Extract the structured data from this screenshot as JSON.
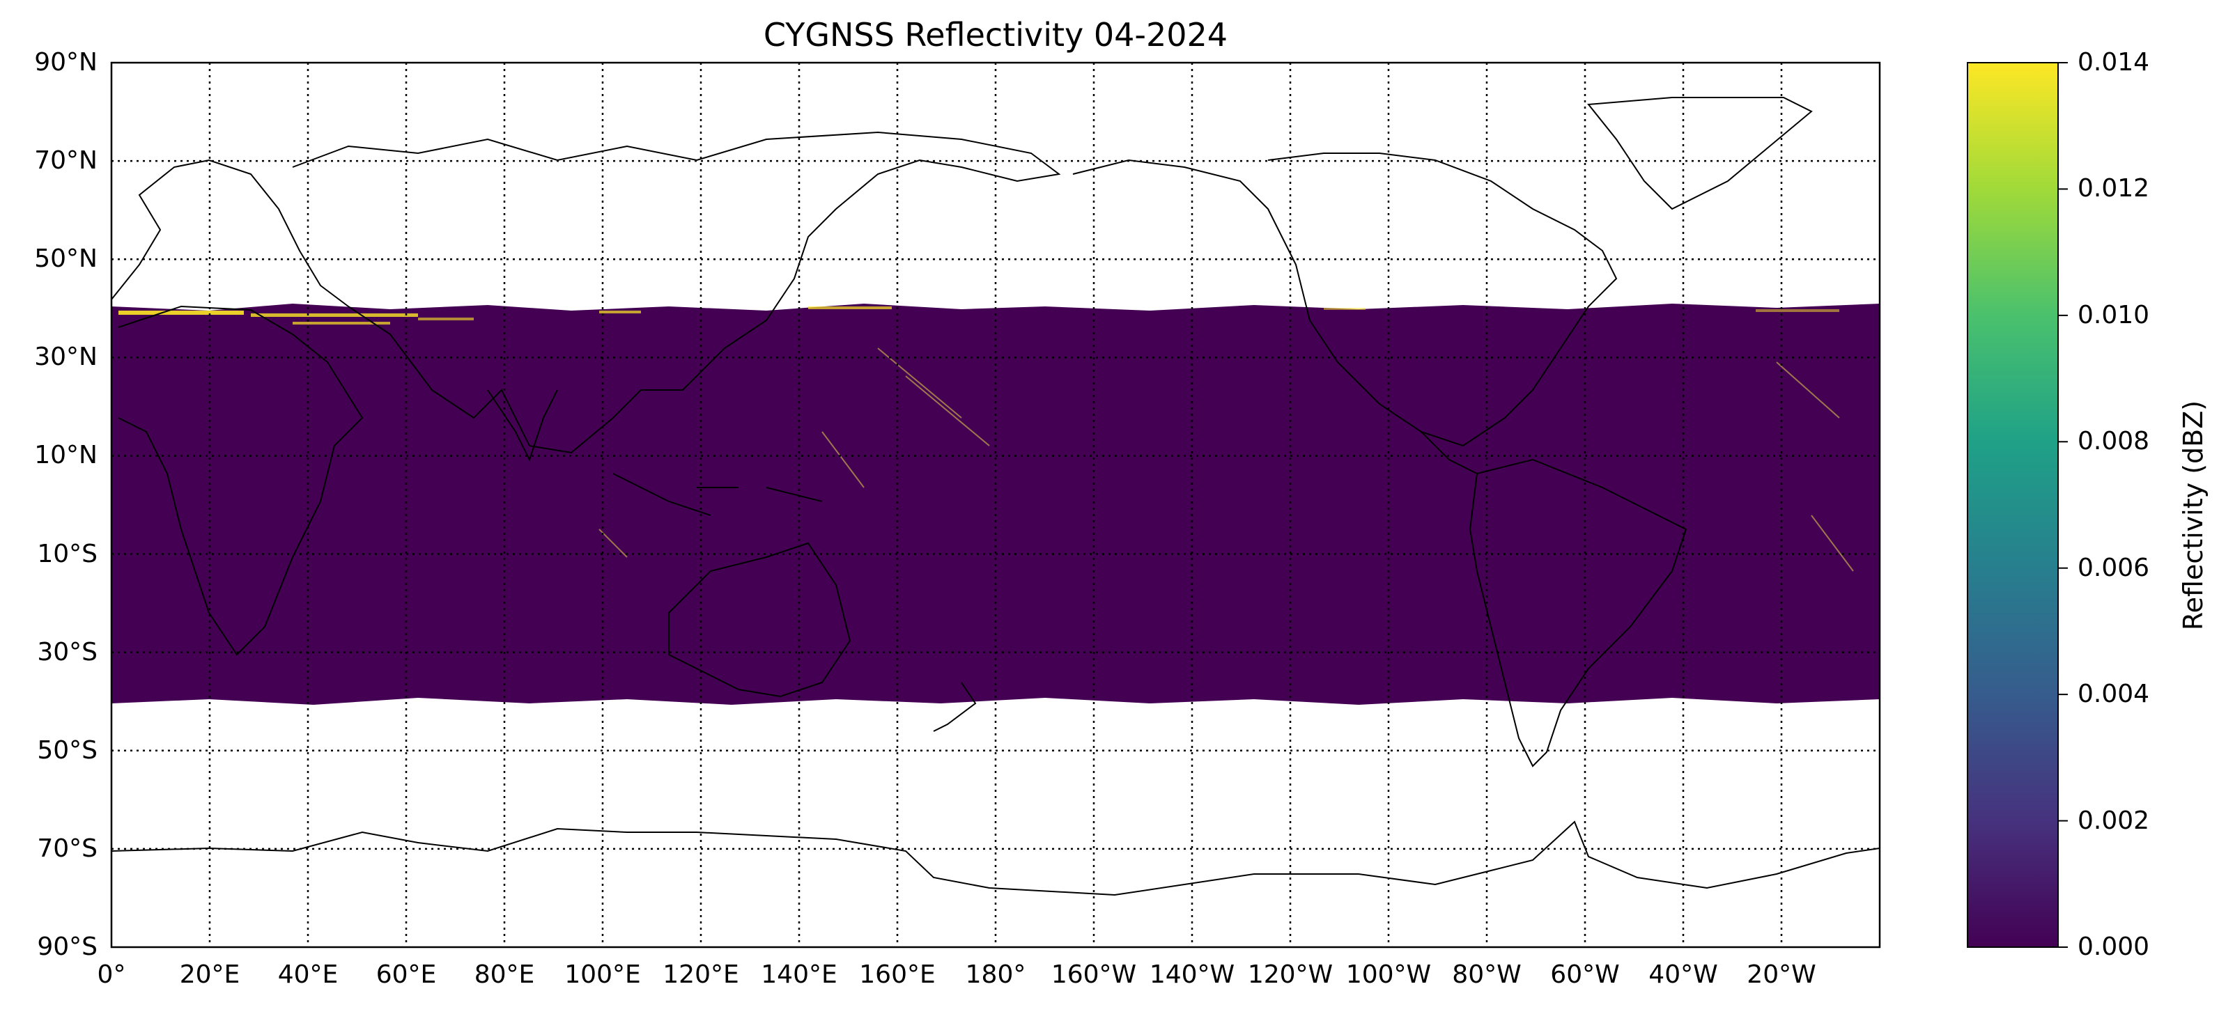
{
  "title": "CYGNSS Reflectivity 04-2024",
  "lat_labels": [
    "90°N",
    "70°N",
    "50°N",
    "30°N",
    "10°N",
    "10°S",
    "30°S",
    "50°S",
    "70°S",
    "90°S"
  ],
  "lon_labels": [
    "0°",
    "20°E",
    "40°E",
    "60°E",
    "80°E",
    "100°E",
    "120°E",
    "140°E",
    "160°E",
    "180°",
    "160°W",
    "140°W",
    "120°W",
    "100°W",
    "80°W",
    "60°W",
    "40°W",
    "20°W"
  ],
  "colorbar": {
    "label": "Reflectivity (dBZ)",
    "ticks": [
      "0.000",
      "0.002",
      "0.004",
      "0.006",
      "0.008",
      "0.010",
      "0.012",
      "0.014"
    ],
    "range": [
      0,
      0.014
    ],
    "colormap": "viridis",
    "colors": [
      "#440154",
      "#46327e",
      "#365c8d",
      "#277f8e",
      "#1fa187",
      "#4ac16d",
      "#a0da39",
      "#fde725"
    ]
  },
  "map": {
    "projection": "equirectangular",
    "lon_range": [
      0,
      360
    ],
    "lat_range": [
      -90,
      90
    ],
    "data_coverage_lat": [
      -38,
      38
    ],
    "background_value_color": "#440154",
    "highlight_color": "#fde725",
    "grid": "dotted",
    "coastlines": true
  }
}
